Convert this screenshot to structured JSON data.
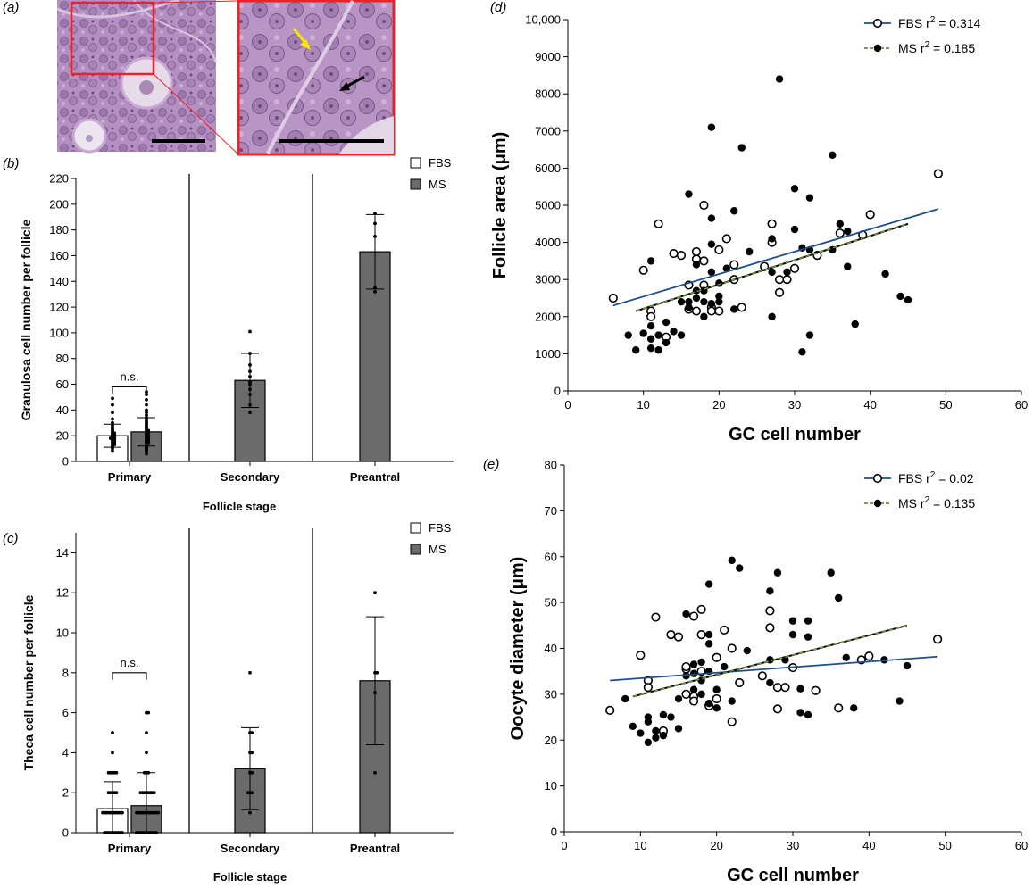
{
  "panel_labels": {
    "a": "(a)",
    "b": "(b)",
    "c": "(c)",
    "d": "(d)",
    "e": "(e)"
  },
  "colors": {
    "fbs_line": "#1f4e8c",
    "ms_line": "#4b7a1e",
    "bar_ms": "#6b6b6b",
    "bar_fbs": "#ffffff",
    "highlight": "#e8232a",
    "arrow_yellow": "#ffe600"
  },
  "chart_data": [
    {
      "id": "b",
      "type": "bar",
      "title": "",
      "xlabel": "Follicle stage",
      "ylabel": "Granulosa cell number per follicle",
      "ylim": [
        0,
        220
      ],
      "yticks": [
        0,
        20,
        40,
        60,
        80,
        100,
        120,
        140,
        160,
        180,
        200,
        220
      ],
      "categories": [
        "Primary",
        "Secondary",
        "Preantral"
      ],
      "legend": [
        "FBS",
        "MS"
      ],
      "series": [
        {
          "name": "FBS",
          "values": [
            20,
            null,
            null
          ],
          "sd": [
            9,
            null,
            null
          ]
        },
        {
          "name": "MS",
          "values": [
            23,
            63,
            163
          ],
          "sd": [
            11,
            21,
            29
          ]
        }
      ],
      "annotation": "n.s.",
      "points": {
        "FBS_Primary": [
          8,
          10,
          11,
          12,
          13,
          13,
          14,
          14,
          15,
          15,
          16,
          16,
          17,
          17,
          18,
          18,
          18,
          19,
          19,
          20,
          20,
          21,
          21,
          22,
          22,
          23,
          24,
          25,
          26,
          28,
          30,
          33,
          38,
          44,
          49
        ],
        "MS_Primary": [
          6,
          8,
          9,
          10,
          11,
          12,
          13,
          14,
          14,
          15,
          16,
          16,
          17,
          17,
          18,
          18,
          19,
          20,
          20,
          21,
          22,
          22,
          23,
          24,
          24,
          25,
          26,
          27,
          28,
          29,
          30,
          31,
          32,
          34,
          36,
          38,
          40,
          44,
          48,
          52,
          54
        ],
        "MS_Secondary": [
          38,
          44,
          52,
          56,
          60,
          62,
          66,
          70,
          75,
          84,
          101
        ],
        "MS_Preantral": [
          132,
          135,
          175,
          185,
          193
        ]
      }
    },
    {
      "id": "c",
      "type": "bar",
      "title": "",
      "xlabel": "Follicle stage",
      "ylabel": "Theca cell number per follicle",
      "ylim": [
        0,
        15
      ],
      "yticks": [
        0,
        2,
        4,
        6,
        8,
        10,
        12,
        14
      ],
      "categories": [
        "Primary",
        "Secondary",
        "Preantral"
      ],
      "legend": [
        "FBS",
        "MS"
      ],
      "series": [
        {
          "name": "FBS",
          "values": [
            1.2,
            null,
            null
          ],
          "sd": [
            1.35,
            null,
            null
          ]
        },
        {
          "name": "MS",
          "values": [
            1.35,
            3.2,
            7.6
          ],
          "sd": [
            1.65,
            2.05,
            3.2
          ]
        }
      ],
      "annotation": "n.s.",
      "points": {
        "FBS_Primary": [
          0,
          0,
          0,
          0,
          0,
          0,
          0,
          0,
          0,
          0,
          1,
          1,
          1,
          1,
          1,
          1,
          1,
          1,
          1,
          1,
          1,
          2,
          2,
          2,
          2,
          2,
          3,
          3,
          3,
          3,
          3,
          4,
          5
        ],
        "MS_Primary": [
          0,
          0,
          0,
          0,
          0,
          0,
          0,
          0,
          0,
          0,
          0,
          1,
          1,
          1,
          1,
          1,
          1,
          1,
          1,
          1,
          1,
          1,
          1,
          2,
          2,
          2,
          2,
          2,
          2,
          2,
          2,
          3,
          3,
          3,
          4,
          5,
          6,
          6
        ],
        "MS_Secondary": [
          1,
          2,
          2,
          2,
          3,
          3,
          4,
          4,
          5,
          5,
          8
        ],
        "MS_Preantral": [
          3,
          7,
          8,
          8,
          12
        ]
      }
    },
    {
      "id": "d",
      "type": "scatter",
      "title": "",
      "xlabel": "GC cell number",
      "ylabel": "Follicle area (μm)",
      "xlim": [
        0,
        60
      ],
      "ylim": [
        0,
        10000
      ],
      "xticks": [
        0,
        10,
        20,
        30,
        40,
        50,
        60
      ],
      "yticks": [
        0,
        1000,
        2000,
        3000,
        4000,
        5000,
        6000,
        7000,
        8000,
        9000,
        10000
      ],
      "ytick_labels": [
        "0",
        "1000",
        "2000",
        "3000",
        "4000",
        "5000",
        "6000",
        "7000",
        "8000",
        "9000",
        "10,000"
      ],
      "legend": [
        {
          "name": "FBS",
          "label": "FBS r",
          "r2_text": "= 0.314"
        },
        {
          "name": "MS",
          "label": "MS r",
          "r2_text": "= 0.185"
        }
      ],
      "series": [
        {
          "name": "FBS",
          "fit": [
            [
              6,
              2300
            ],
            [
              49,
              4900
            ]
          ],
          "points": [
            [
              6,
              2500
            ],
            [
              10,
              3250
            ],
            [
              11,
              2150
            ],
            [
              11,
              2000
            ],
            [
              12,
              4500
            ],
            [
              13,
              1450
            ],
            [
              14,
              3700
            ],
            [
              15,
              3650
            ],
            [
              16,
              2850
            ],
            [
              16,
              2200
            ],
            [
              17,
              3750
            ],
            [
              17,
              2150
            ],
            [
              17,
              3550
            ],
            [
              18,
              5000
            ],
            [
              18,
              3500
            ],
            [
              18,
              2850
            ],
            [
              19,
              2250
            ],
            [
              19,
              2150
            ],
            [
              20,
              3800
            ],
            [
              20,
              2150
            ],
            [
              21,
              4100
            ],
            [
              22,
              3400
            ],
            [
              22,
              3000
            ],
            [
              23,
              2250
            ],
            [
              26,
              3350
            ],
            [
              27,
              4500
            ],
            [
              27,
              4000
            ],
            [
              28,
              2650
            ],
            [
              28,
              3000
            ],
            [
              29,
              3000
            ],
            [
              30,
              3300
            ],
            [
              33,
              3650
            ],
            [
              36,
              4250
            ],
            [
              39,
              4200
            ],
            [
              40,
              4750
            ],
            [
              49,
              5850
            ]
          ]
        },
        {
          "name": "MS",
          "fit": [
            [
              9,
              2150
            ],
            [
              45,
              4500
            ]
          ],
          "points": [
            [
              8,
              1500
            ],
            [
              9,
              1100
            ],
            [
              10,
              1550
            ],
            [
              11,
              1400
            ],
            [
              11,
              1150
            ],
            [
              11,
              1750
            ],
            [
              11,
              3500
            ],
            [
              12,
              1100
            ],
            [
              12,
              1500
            ],
            [
              13,
              1300
            ],
            [
              13,
              1850
            ],
            [
              14,
              1600
            ],
            [
              15,
              1500
            ],
            [
              15,
              2400
            ],
            [
              16,
              5300
            ],
            [
              16,
              2400
            ],
            [
              16,
              2250
            ],
            [
              17,
              3400
            ],
            [
              17,
              2700
            ],
            [
              17,
              2500
            ],
            [
              18,
              2700
            ],
            [
              18,
              2000
            ],
            [
              18,
              2400
            ],
            [
              19,
              7100
            ],
            [
              19,
              4650
            ],
            [
              19,
              3950
            ],
            [
              19,
              3200
            ],
            [
              19,
              2350
            ],
            [
              20,
              2550
            ],
            [
              20,
              2400
            ],
            [
              20,
              2900
            ],
            [
              21,
              3300
            ],
            [
              22,
              4850
            ],
            [
              22,
              2200
            ],
            [
              23,
              6550
            ],
            [
              24,
              3750
            ],
            [
              27,
              2000
            ],
            [
              27,
              4100
            ],
            [
              27,
              3200
            ],
            [
              28,
              8400
            ],
            [
              29,
              3200
            ],
            [
              30,
              5450
            ],
            [
              30,
              4350
            ],
            [
              31,
              3850
            ],
            [
              31,
              1050
            ],
            [
              32,
              5200
            ],
            [
              32,
              1500
            ],
            [
              32,
              3800
            ],
            [
              35,
              6350
            ],
            [
              35,
              3800
            ],
            [
              36,
              4500
            ],
            [
              37,
              4300
            ],
            [
              37,
              3350
            ],
            [
              38,
              1800
            ],
            [
              42,
              3150
            ],
            [
              44,
              2550
            ],
            [
              45,
              2450
            ]
          ]
        }
      ]
    },
    {
      "id": "e",
      "type": "scatter",
      "title": "",
      "xlabel": "GC cell number",
      "ylabel": "Oocyte diameter (μm)",
      "xlim": [
        0,
        60
      ],
      "ylim": [
        0,
        80
      ],
      "xticks": [
        0,
        10,
        20,
        30,
        40,
        50,
        60
      ],
      "yticks": [
        0,
        10,
        20,
        30,
        40,
        50,
        60,
        70,
        80
      ],
      "ytick_labels": [
        "0",
        "10",
        "20",
        "30",
        "40",
        "50",
        "60",
        "70",
        "80"
      ],
      "legend": [
        {
          "name": "FBS",
          "label": "FBS r",
          "r2_text": "= 0.02"
        },
        {
          "name": "MS",
          "label": "MS r",
          "r2_text": "= 0.135"
        }
      ],
      "series": [
        {
          "name": "FBS",
          "fit": [
            [
              6,
              33
            ],
            [
              49,
              38.2
            ]
          ],
          "points": [
            [
              6,
              26.5
            ],
            [
              10,
              38.5
            ],
            [
              11,
              33
            ],
            [
              11,
              31.5
            ],
            [
              12,
              46.8
            ],
            [
              13,
              22
            ],
            [
              14,
              43
            ],
            [
              15,
              42.5
            ],
            [
              16,
              35.5
            ],
            [
              16,
              30
            ],
            [
              16,
              36
            ],
            [
              17,
              47
            ],
            [
              17,
              29.5
            ],
            [
              17,
              28.5
            ],
            [
              18,
              43
            ],
            [
              18,
              48.5
            ],
            [
              18,
              35
            ],
            [
              19,
              27.5
            ],
            [
              20,
              38
            ],
            [
              20,
              29
            ],
            [
              21,
              44
            ],
            [
              22,
              40
            ],
            [
              22,
              24
            ],
            [
              23,
              32.5
            ],
            [
              26,
              34
            ],
            [
              27,
              48.2
            ],
            [
              27,
              44.5
            ],
            [
              28,
              31.5
            ],
            [
              28,
              26.8
            ],
            [
              29,
              31.5
            ],
            [
              30,
              35.8
            ],
            [
              33,
              30.8
            ],
            [
              36,
              27
            ],
            [
              39,
              37.5
            ],
            [
              40,
              38.3
            ],
            [
              49,
              42
            ]
          ]
        },
        {
          "name": "MS",
          "fit": [
            [
              9,
              29.5
            ],
            [
              45,
              45
            ]
          ],
          "points": [
            [
              8,
              29
            ],
            [
              9,
              23
            ],
            [
              10,
              21.5
            ],
            [
              11,
              25
            ],
            [
              11,
              19.5
            ],
            [
              11,
              24
            ],
            [
              12,
              20.5
            ],
            [
              12,
              22
            ],
            [
              13,
              21
            ],
            [
              13,
              25.5
            ],
            [
              14,
              25
            ],
            [
              15,
              22.5
            ],
            [
              15,
              29
            ],
            [
              16,
              47.5
            ],
            [
              16,
              34
            ],
            [
              17,
              31
            ],
            [
              17,
              36.5
            ],
            [
              17,
              34.5
            ],
            [
              18,
              37
            ],
            [
              18,
              33
            ],
            [
              18,
              30
            ],
            [
              19,
              54
            ],
            [
              19,
              43
            ],
            [
              19,
              41
            ],
            [
              19,
              35
            ],
            [
              19,
              28
            ],
            [
              20,
              31
            ],
            [
              20,
              27
            ],
            [
              21,
              36
            ],
            [
              22,
              59.2
            ],
            [
              22,
              28.5
            ],
            [
              23,
              57.5
            ],
            [
              24,
              39.5
            ],
            [
              27,
              32.5
            ],
            [
              27,
              52.5
            ],
            [
              27,
              37.5
            ],
            [
              28,
              56.5
            ],
            [
              29,
              37.5
            ],
            [
              30,
              46
            ],
            [
              30,
              43
            ],
            [
              31,
              31.2
            ],
            [
              31,
              26
            ],
            [
              32,
              46
            ],
            [
              32,
              25.5
            ],
            [
              32,
              42.5
            ],
            [
              35,
              56.5
            ],
            [
              36,
              51
            ],
            [
              37,
              38
            ],
            [
              38,
              27
            ],
            [
              42,
              37.5
            ],
            [
              44,
              28.5
            ],
            [
              45,
              36.2
            ]
          ]
        }
      ]
    }
  ]
}
